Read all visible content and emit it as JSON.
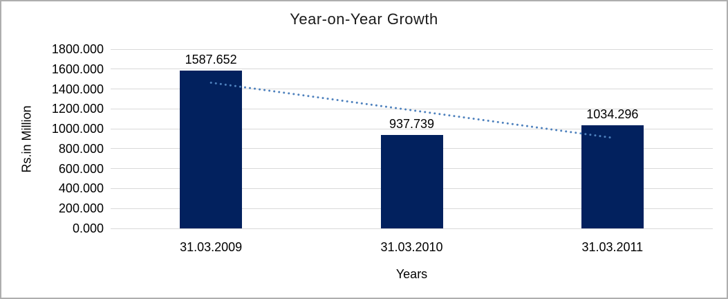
{
  "window": {
    "background": "#ffffff",
    "frame_border_color": "#aeaeae"
  },
  "chart_data": {
    "type": "bar",
    "title": "Year-on-Year Growth",
    "categories": [
      "31.03.2009",
      "31.03.2010",
      "31.03.2011"
    ],
    "values": [
      1587.652,
      937.739,
      1034.296
    ],
    "data_labels": [
      "1587.652",
      "937.739",
      "1034.296"
    ],
    "xlabel": "Years",
    "ylabel": "Rs.in Million",
    "ylim": [
      0,
      1800
    ],
    "ytick_step": 200,
    "ytick_labels_top_to_bottom": [
      "1800.000",
      "1600.000",
      "1400.000",
      "1200.000",
      "1000.000",
      "800.000",
      "600.000",
      "400.000",
      "200.000",
      "0.000"
    ],
    "grid": true,
    "legend": "none",
    "trendline": {
      "style": "dotted",
      "fit": "linear",
      "value_at_first_category": 1463.2,
      "value_at_last_category": 909.9
    },
    "colors": {
      "bar": "#02215E",
      "gridline": "#D9D9D9",
      "trendline": "#4E81BD",
      "text": "#000000"
    }
  }
}
